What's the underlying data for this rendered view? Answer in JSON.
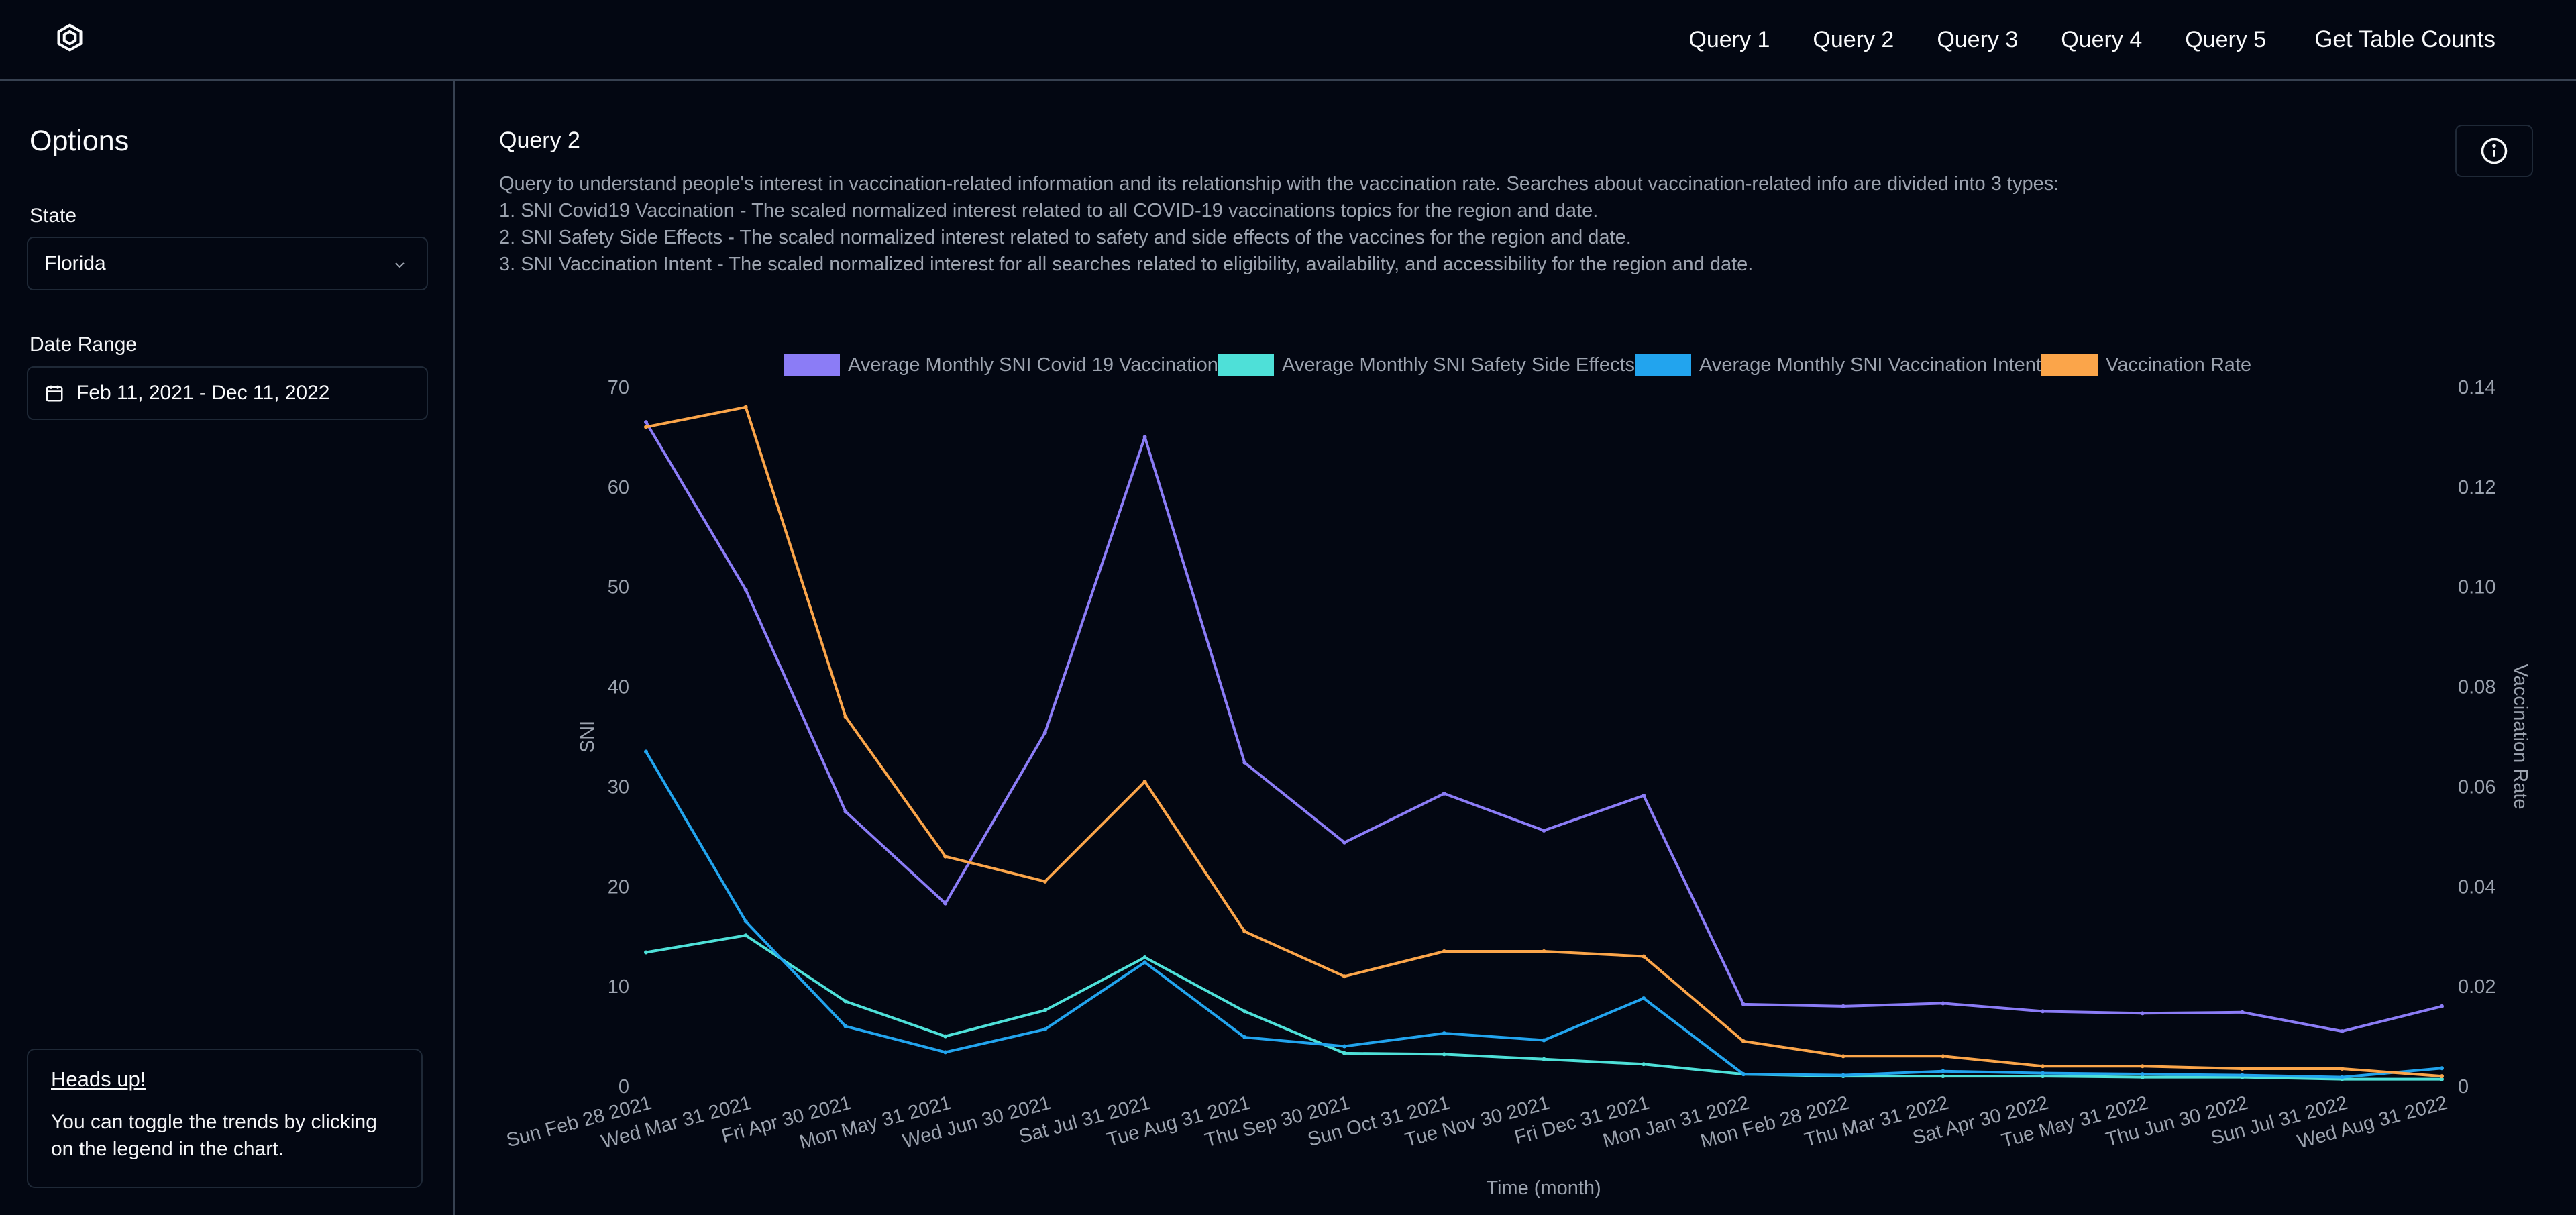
{
  "nav": {
    "items": [
      "Query 1",
      "Query 2",
      "Query 3",
      "Query 4",
      "Query 5"
    ],
    "table_counts": "Get Table Counts"
  },
  "sidebar": {
    "title": "Options",
    "state_label": "State",
    "state_value": "Florida",
    "date_label": "Date Range",
    "date_value": "Feb 11, 2021 - Dec 11, 2022",
    "headsup_title": "Heads up!",
    "headsup_text": "You can toggle the trends by clicking on the legend in the chart."
  },
  "main": {
    "title": "Query 2",
    "description": [
      "Query to understand people's interest in vaccination-related information and its relationship with the vaccination rate. Searches about vaccination-related info are divided into 3 types:",
      "1. SNI Covid19 Vaccination - The scaled normalized interest related to all COVID-19 vaccinations topics for the region and date.",
      "2. SNI Safety Side Effects - The scaled normalized interest related to safety and side effects of the vaccines for the region and date.",
      "3. SNI Vaccination Intent - The scaled normalized interest for all searches related to eligibility, availability, and accessibility for the region and date."
    ]
  },
  "chart_data": {
    "type": "line",
    "xlabel": "Time (month)",
    "ylabel": "SNI",
    "y2label": "Vaccination Rate",
    "ylim": [
      0,
      70
    ],
    "y2lim": [
      0,
      0.14
    ],
    "yticks": [
      "0",
      "10",
      "20",
      "30",
      "40",
      "50",
      "60",
      "70"
    ],
    "y2ticks": [
      "0",
      "0.02",
      "0.04",
      "0.06",
      "0.08",
      "0.10",
      "0.12",
      "0.14"
    ],
    "legend_position": "top",
    "categories": [
      "Sun Feb 28 2021",
      "Wed Mar 31 2021",
      "Fri Apr 30 2021",
      "Mon May 31 2021",
      "Wed Jun 30 2021",
      "Sat Jul 31 2021",
      "Tue Aug 31 2021",
      "Thu Sep 30 2021",
      "Sun Oct 31 2021",
      "Tue Nov 30 2021",
      "Fri Dec 31 2021",
      "Mon Jan 31 2022",
      "Mon Feb 28 2022",
      "Thu Mar 31 2022",
      "Sat Apr 30 2022",
      "Tue May 31 2022",
      "Thu Jun 30 2022",
      "Sun Jul 31 2022",
      "Wed Aug 31 2022"
    ],
    "series": [
      {
        "name": "Average Monthly SNI Covid 19 Vaccination",
        "axis": "left",
        "color": "#8b7cf6",
        "values": [
          66.5,
          49.7,
          27.5,
          18.3,
          35.4,
          65.0,
          32.4,
          24.4,
          29.3,
          25.6,
          29.1,
          8.2,
          8.0,
          8.3,
          7.5,
          7.3,
          7.4,
          5.5,
          8.0
        ]
      },
      {
        "name": "Average Monthly SNI Safety Side Effects",
        "axis": "left",
        "color": "#4ee0d8",
        "values": [
          13.4,
          15.1,
          8.5,
          5.0,
          7.6,
          12.9,
          7.5,
          3.3,
          3.2,
          2.7,
          2.2,
          1.2,
          1.0,
          1.0,
          1.0,
          0.9,
          0.9,
          0.7,
          0.7
        ]
      },
      {
        "name": "Average Monthly SNI Vaccination Intent",
        "axis": "left",
        "color": "#22a4ee",
        "values": [
          33.5,
          16.5,
          6.0,
          3.4,
          5.7,
          12.4,
          4.9,
          4.0,
          5.3,
          4.6,
          8.8,
          1.2,
          1.1,
          1.5,
          1.3,
          1.2,
          1.1,
          0.9,
          1.8
        ]
      },
      {
        "name": "Vaccination Rate",
        "axis": "right",
        "color": "#fba54a",
        "values": [
          0.132,
          0.136,
          0.074,
          0.046,
          0.041,
          0.061,
          0.031,
          0.022,
          0.027,
          0.027,
          0.026,
          0.009,
          0.006,
          0.006,
          0.004,
          0.004,
          0.0035,
          0.0035,
          0.002
        ]
      }
    ]
  }
}
